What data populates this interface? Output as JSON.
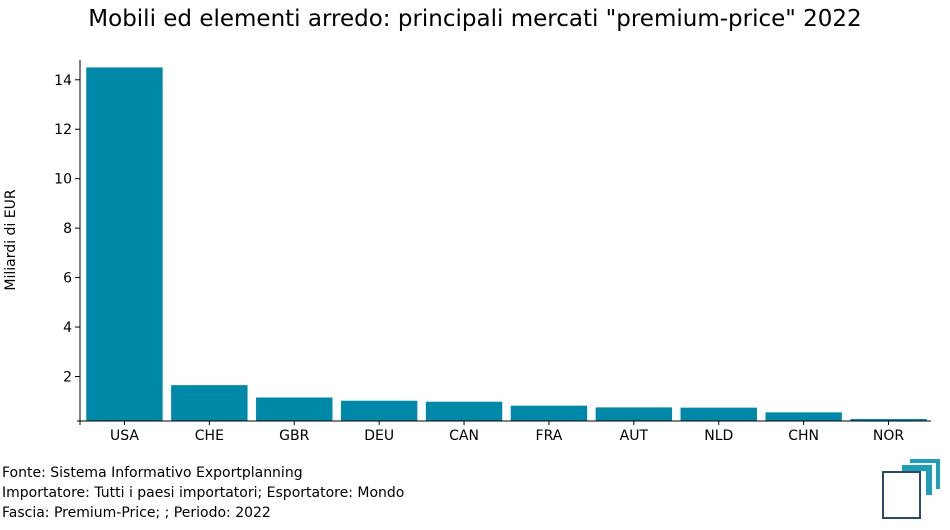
{
  "title": "Mobili ed elementi arredo: principali mercati \"premium-price\" 2022",
  "footer": {
    "source": "Fonte: Sistema Informativo Exportplanning",
    "importer": "Importatore: Tutti i paesi importatori; Esportatore: Mondo",
    "band": "Fascia: Premium-Price; ; Periodo: 2022"
  },
  "logo_icon": "exportplanning-logo-icon",
  "chart_data": {
    "type": "bar",
    "title": "Mobili ed elementi arredo: principali mercati \"premium-price\" 2022",
    "xlabel": "",
    "ylabel": "Miliardi di EUR",
    "categories": [
      "USA",
      "CHE",
      "GBR",
      "DEU",
      "CAN",
      "FRA",
      "AUT",
      "NLD",
      "CHN",
      "NOR"
    ],
    "values": [
      14.5,
      1.65,
      1.15,
      1.02,
      0.98,
      0.82,
      0.75,
      0.74,
      0.55,
      0.28
    ],
    "ylim": [
      0.2,
      14.8
    ],
    "yticks": [
      2,
      4,
      6,
      8,
      10,
      12,
      14
    ],
    "bar_color": "#0088A8",
    "grid": false,
    "legend": "none"
  }
}
